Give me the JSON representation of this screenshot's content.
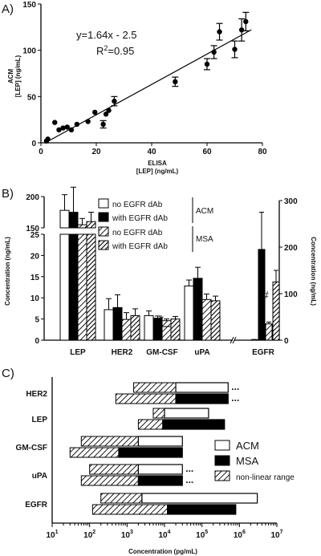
{
  "chart_data": [
    {
      "panel_letter": "A)",
      "type": "scatter",
      "xlabel": "ELISA",
      "xlabel_unit": "[LEP] (ng/mL)",
      "ylabel": "ACM",
      "ylabel_unit": "[LEP] (ng/mL)",
      "xlim": [
        0,
        80
      ],
      "ylim": [
        0,
        150
      ],
      "xticks": [
        0,
        20,
        40,
        60,
        80
      ],
      "yticks": [
        0,
        50,
        100,
        150
      ],
      "equation": "y=1.64x - 2.5",
      "r2_prefix": "R",
      "r2_exp": "2",
      "r2_value": "=0.95",
      "fit": {
        "slope": 1.64,
        "intercept": -2.5,
        "x_range": [
          2,
          76
        ]
      },
      "points": [
        {
          "x": 2,
          "y": 2
        },
        {
          "x": 2.5,
          "y": 4
        },
        {
          "x": 5,
          "y": 22
        },
        {
          "x": 6.5,
          "y": 14
        },
        {
          "x": 8,
          "y": 16
        },
        {
          "x": 9.5,
          "y": 17
        },
        {
          "x": 11,
          "y": 14
        },
        {
          "x": 13,
          "y": 20
        },
        {
          "x": 17,
          "y": 23
        },
        {
          "x": 19.5,
          "y": 33
        },
        {
          "x": 22.5,
          "y": 20,
          "err": 4
        },
        {
          "x": 23.5,
          "y": 31
        },
        {
          "x": 24.5,
          "y": 35
        },
        {
          "x": 26.5,
          "y": 45,
          "err": 5
        },
        {
          "x": 48.5,
          "y": 66,
          "err": 5
        },
        {
          "x": 60,
          "y": 85,
          "err": 6
        },
        {
          "x": 62.5,
          "y": 98,
          "err": 7
        },
        {
          "x": 64.5,
          "y": 120,
          "err": 9
        },
        {
          "x": 70,
          "y": 101,
          "err": 9
        },
        {
          "x": 72.5,
          "y": 122,
          "err": 12
        },
        {
          "x": 74,
          "y": 131,
          "err": 10
        }
      ]
    },
    {
      "panel_letter": "B)",
      "type": "bar",
      "categories_left": [
        "LEP",
        "HER2",
        "GM-CSF",
        "uPA"
      ],
      "category_right": "EGFR",
      "ylabel_left": "Concentration (ng/mL)",
      "ylabel_right": "Concentration (ng/mL)",
      "ylim_left_lower": [
        0,
        25
      ],
      "ylim_left_upper": [
        150,
        200
      ],
      "yticks_left": [
        0,
        5,
        10,
        15,
        20,
        25,
        150,
        200
      ],
      "ylim_right": [
        0,
        300
      ],
      "yticks_right": [
        0,
        100,
        200,
        300
      ],
      "legend": {
        "entries": [
          "no EGFR dAb",
          "with EGFR dAb",
          "no EGFR dAb",
          "with EGFR dAb"
        ],
        "groups": [
          "ACM",
          "MSA"
        ]
      },
      "series": [
        {
          "name": "ACM no EGFR dAb",
          "fill": "white",
          "values": [
            178,
            7.2,
            5.8,
            12.8,
            1
          ],
          "errors": [
            25,
            2.6,
            1.1,
            1.4,
            0.5
          ]
        },
        {
          "name": "ACM with EGFR dAb",
          "fill": "black",
          "values": [
            175,
            7.7,
            5.2,
            14.6,
            195
          ],
          "errors": [
            40,
            3.0,
            0.5,
            2.6,
            80
          ]
        },
        {
          "name": "MSA no EGFR dAb",
          "fill": "hatched",
          "values": [
            155,
            4.9,
            4.6,
            9.6,
            35
          ],
          "errors": [
            10,
            1.6,
            0.4,
            1.3,
            4
          ]
        },
        {
          "name": "MSA with EGFR dAb",
          "fill": "hatched-dense",
          "values": [
            160,
            5.8,
            5.0,
            9.3,
            125
          ],
          "errors": [
            15,
            1.6,
            0.6,
            1.1,
            25
          ]
        }
      ],
      "annotations": [
        {
          "text": "*",
          "category": "GM-CSF"
        },
        {
          "text": "#",
          "category": "EGFR"
        }
      ]
    },
    {
      "panel_letter": "C)",
      "type": "range",
      "xlabel": "Concentration (pg/mL)",
      "x_scale": "log",
      "xlim_log10": [
        1,
        7
      ],
      "xtick_base": "10",
      "xtick_exps": [
        "1",
        "2",
        "3",
        "4",
        "5",
        "6",
        "7"
      ],
      "categories": [
        "HER2",
        "LEP",
        "GM-CSF",
        "uPA",
        "EGFR"
      ],
      "legend": [
        "ACM",
        "MSA",
        "non-linear range"
      ],
      "ellipsis": "...",
      "ranges": [
        {
          "category": "HER2",
          "assay": "ACM",
          "start": 1500,
          "linear_start": 20000,
          "end": 500000,
          "continues": true
        },
        {
          "category": "HER2",
          "assay": "MSA",
          "start": 500,
          "linear_start": 20000,
          "end": 500000,
          "continues": true
        },
        {
          "category": "LEP",
          "assay": "ACM",
          "start": 5000,
          "linear_start": 10000,
          "end": 150000,
          "continues": false
        },
        {
          "category": "LEP",
          "assay": "MSA",
          "start": 2000,
          "linear_start": 9000,
          "end": 400000,
          "continues": false
        },
        {
          "category": "GM-CSF",
          "assay": "ACM",
          "start": 60,
          "linear_start": 2000,
          "end": 30000,
          "continues": false
        },
        {
          "category": "GM-CSF",
          "assay": "MSA",
          "start": 30,
          "linear_start": 600,
          "end": 30000,
          "continues": false
        },
        {
          "category": "uPA",
          "assay": "ACM",
          "start": 100,
          "linear_start": 2000,
          "end": 30000,
          "continues": true
        },
        {
          "category": "uPA",
          "assay": "MSA",
          "start": 60,
          "linear_start": 2000,
          "end": 30000,
          "continues": true
        },
        {
          "category": "EGFR",
          "assay": "ACM",
          "start": 200,
          "linear_start": 2500,
          "end": 3000000,
          "continues": false
        },
        {
          "category": "EGFR",
          "assay": "MSA",
          "start": 120,
          "linear_start": 12000,
          "end": 800000,
          "continues": false
        }
      ]
    }
  ]
}
